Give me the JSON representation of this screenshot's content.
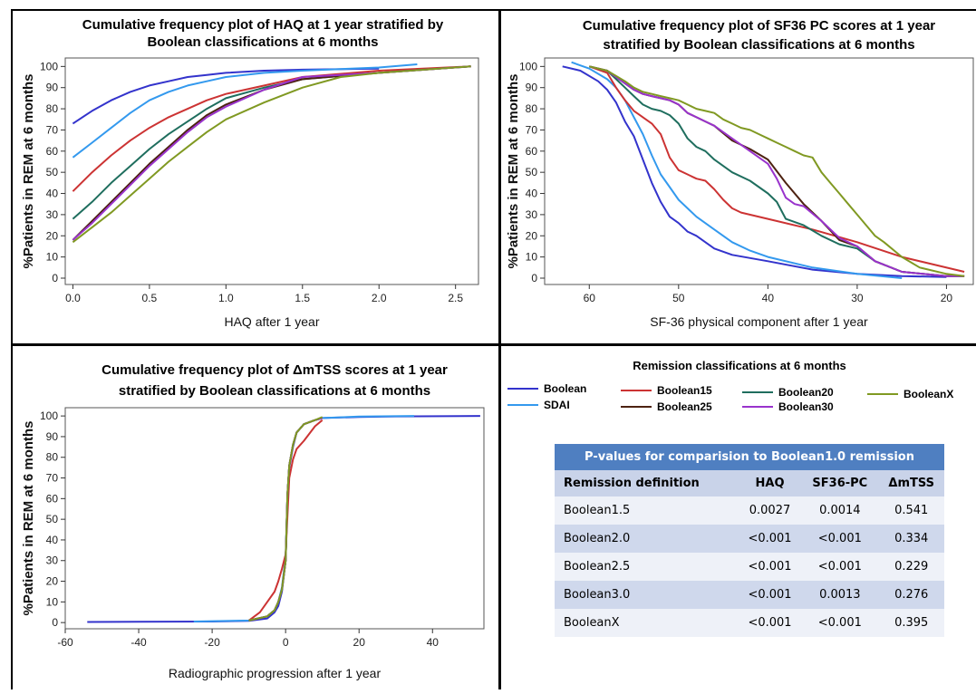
{
  "colors": {
    "Boolean": "#3333cc",
    "SDAI": "#3399ee",
    "Boolean15": "#cc3333",
    "Boolean25": "#4d2211",
    "Boolean20": "#1f6e5e",
    "Boolean30": "#9933cc",
    "BooleanX": "#809922",
    "table_header": "#4f7fc1"
  },
  "chart_data": [
    {
      "type": "line",
      "title_lines": [
        "Cumulative frequency plot of HAQ at 1 year stratified by",
        "Boolean classifications at 6 months"
      ],
      "xlabel": "HAQ after 1 year",
      "ylabel": "%Patients in REM at 6 months",
      "xlim": [
        -0.05,
        2.65
      ],
      "ylim": [
        -3,
        104
      ],
      "x_ticks": [
        "0.0",
        "0.5",
        "1.0",
        "1.5",
        "2.0",
        "2.5"
      ],
      "x_tick_values": [
        0,
        0.5,
        1.0,
        1.5,
        2.0,
        2.5
      ],
      "y_ticks": [
        "0",
        "10",
        "20",
        "30",
        "40",
        "50",
        "60",
        "70",
        "80",
        "90",
        "100"
      ],
      "y_tick_values": [
        0,
        10,
        20,
        30,
        40,
        50,
        60,
        70,
        80,
        90,
        100
      ],
      "series": [
        {
          "name": "Boolean",
          "x": [
            0,
            0.125,
            0.25,
            0.375,
            0.5,
            0.625,
            0.75,
            0.875,
            1.0,
            1.25,
            1.5,
            2.0
          ],
          "y": [
            73,
            79,
            84,
            88,
            91,
            93,
            95,
            96,
            97,
            98,
            98.5,
            99
          ]
        },
        {
          "name": "SDAI",
          "x": [
            0,
            0.125,
            0.25,
            0.375,
            0.5,
            0.625,
            0.75,
            0.875,
            1.0,
            1.25,
            1.5,
            2.0,
            2.25
          ],
          "y": [
            57,
            64,
            71,
            78,
            84,
            88,
            91,
            93,
            95,
            97,
            98,
            99.5,
            101
          ]
        },
        {
          "name": "Boolean15",
          "x": [
            0,
            0.125,
            0.25,
            0.375,
            0.5,
            0.625,
            0.75,
            0.875,
            1.0,
            1.25,
            1.5,
            2.0,
            2.6
          ],
          "y": [
            41,
            50,
            58,
            65,
            71,
            76,
            80,
            84,
            87,
            91,
            95,
            98,
            100
          ]
        },
        {
          "name": "Boolean20",
          "x": [
            0,
            0.125,
            0.25,
            0.375,
            0.5,
            0.625,
            0.75,
            0.875,
            1.0,
            1.25,
            1.5,
            2.0,
            2.6
          ],
          "y": [
            28,
            36,
            45,
            53,
            61,
            68,
            74,
            80,
            85,
            90,
            94,
            97,
            100
          ]
        },
        {
          "name": "Boolean25",
          "x": [
            0,
            0.125,
            0.25,
            0.375,
            0.5,
            0.625,
            0.75,
            0.875,
            1.0,
            1.25,
            1.5,
            2.0,
            2.6
          ],
          "y": [
            18,
            27,
            36,
            45,
            54,
            62,
            70,
            77,
            82,
            89,
            94,
            97,
            100
          ]
        },
        {
          "name": "Boolean30",
          "x": [
            0,
            0.125,
            0.25,
            0.375,
            0.5,
            0.625,
            0.75,
            0.875,
            1.0,
            1.25,
            1.5,
            2.0,
            2.6
          ],
          "y": [
            18,
            26,
            35,
            44,
            53,
            61,
            69,
            76,
            81,
            89,
            95,
            97,
            100
          ]
        },
        {
          "name": "BooleanX",
          "x": [
            0,
            0.125,
            0.25,
            0.375,
            0.5,
            0.625,
            0.75,
            0.875,
            1.0,
            1.25,
            1.5,
            1.75,
            2.0,
            2.6
          ],
          "y": [
            17,
            24,
            31,
            39,
            47,
            55,
            62,
            69,
            75,
            83,
            90,
            95,
            97,
            100
          ]
        }
      ]
    },
    {
      "type": "line",
      "title_lines": [
        "Cumulative frequency plot of SF36 PC scores at 1 year",
        "stratified by Boolean classifications at 6 months"
      ],
      "xlabel": "SF-36 physical component after 1 year",
      "ylabel": "%Patients in REM at 6 months",
      "xlim": [
        65,
        17
      ],
      "ylim": [
        -3,
        104
      ],
      "x_ticks": [
        "60",
        "50",
        "40",
        "30",
        "20"
      ],
      "x_tick_values": [
        60,
        50,
        40,
        30,
        20
      ],
      "y_ticks": [
        "0",
        "10",
        "20",
        "30",
        "40",
        "50",
        "60",
        "70",
        "80",
        "90",
        "100"
      ],
      "y_tick_values": [
        0,
        10,
        20,
        30,
        40,
        50,
        60,
        70,
        80,
        90,
        100
      ],
      "series": [
        {
          "name": "Boolean",
          "x": [
            63,
            61,
            59,
            58,
            57,
            56,
            55,
            54,
            53,
            52,
            51,
            50,
            49,
            48,
            46,
            44,
            40,
            35,
            30,
            25,
            20
          ],
          "y": [
            100,
            98,
            93,
            89,
            83,
            74,
            67,
            56,
            45,
            36,
            29,
            26,
            22,
            20,
            14,
            11,
            8,
            4,
            2,
            1,
            0.5
          ]
        },
        {
          "name": "SDAI",
          "x": [
            62,
            60,
            58,
            57,
            56,
            55,
            54,
            53,
            52,
            51,
            50,
            48,
            46,
            44,
            42,
            40,
            35,
            30,
            25
          ],
          "y": [
            102,
            99,
            94,
            90,
            84,
            76,
            68,
            58,
            49,
            43,
            37,
            29,
            23,
            17,
            13,
            10,
            5,
            2,
            0
          ]
        },
        {
          "name": "Boolean15",
          "x": [
            60,
            58,
            57,
            56,
            55,
            54,
            53,
            52,
            51,
            50,
            49,
            48,
            47,
            46,
            45,
            44,
            43,
            40,
            35,
            30,
            25,
            18
          ],
          "y": [
            100,
            97,
            90,
            84,
            79,
            76,
            73,
            68,
            57,
            51,
            49,
            47,
            46,
            42,
            37,
            33,
            31,
            28,
            23,
            17,
            10,
            3
          ]
        },
        {
          "name": "Boolean20",
          "x": [
            60,
            58,
            56,
            55,
            54,
            53,
            52,
            51,
            50,
            49,
            48,
            47,
            46,
            44,
            42,
            40,
            39,
            38,
            36,
            34,
            32,
            30,
            28,
            25,
            20,
            18
          ],
          "y": [
            100,
            98,
            90,
            86,
            82,
            80,
            79,
            77,
            73,
            66,
            62,
            60,
            56,
            50,
            46,
            40,
            36,
            28,
            25,
            20,
            16,
            14,
            8,
            3,
            1,
            1
          ]
        },
        {
          "name": "Boolean25",
          "x": [
            60,
            58,
            56,
            55,
            54,
            53,
            52,
            51,
            50,
            49,
            48,
            47,
            46,
            44,
            42,
            40,
            38,
            36,
            34,
            32,
            30,
            28,
            25,
            20,
            18
          ],
          "y": [
            100,
            98,
            92,
            89,
            87,
            86,
            85,
            84,
            82,
            78,
            76,
            74,
            72,
            65,
            61,
            56,
            45,
            35,
            27,
            18,
            15,
            8,
            3,
            1,
            1
          ]
        },
        {
          "name": "Boolean30",
          "x": [
            60,
            58,
            56,
            55,
            54,
            53,
            52,
            51,
            50,
            49,
            48,
            47,
            46,
            44,
            42,
            40,
            39,
            38,
            37,
            36,
            34,
            32,
            30,
            28,
            25,
            20,
            18
          ],
          "y": [
            100,
            98,
            92,
            89,
            87,
            86,
            85,
            84,
            82,
            78,
            76,
            74,
            72,
            66,
            60,
            54,
            47,
            38,
            35,
            34,
            27,
            19,
            15,
            8,
            3,
            1,
            1
          ]
        },
        {
          "name": "BooleanX",
          "x": [
            60,
            58,
            56,
            55,
            54,
            53,
            52,
            51,
            50,
            49,
            48,
            47,
            46,
            45,
            44,
            43,
            42,
            41,
            40,
            39,
            38,
            37,
            36,
            35,
            34,
            33,
            32,
            31,
            30,
            29,
            28,
            27,
            25,
            23,
            20,
            18
          ],
          "y": [
            100,
            98,
            93,
            90,
            88,
            87,
            86,
            85,
            84,
            82,
            80,
            79,
            78,
            75,
            73,
            71,
            70,
            68,
            66,
            64,
            62,
            60,
            58,
            57,
            50,
            45,
            40,
            35,
            30,
            25,
            20,
            17,
            10,
            5,
            2,
            1
          ]
        }
      ]
    },
    {
      "type": "line",
      "title_lines": [
        "Cumulative frequency plot of ΔmTSS scores at 1 year",
        "stratified by Boolean classifications at 6 months"
      ],
      "xlabel": "Radiographic progression after 1 year",
      "ylabel": "%Patients in REM at 6 months",
      "xlim": [
        -60,
        54
      ],
      "ylim": [
        -3,
        104
      ],
      "x_ticks": [
        "-60",
        "-40",
        "-20",
        "0",
        "20",
        "40"
      ],
      "x_tick_values": [
        -60,
        -40,
        -20,
        0,
        20,
        40
      ],
      "y_ticks": [
        "0",
        "10",
        "20",
        "30",
        "40",
        "50",
        "60",
        "70",
        "80",
        "90",
        "100"
      ],
      "y_tick_values": [
        0,
        10,
        20,
        30,
        40,
        50,
        60,
        70,
        80,
        90,
        100
      ],
      "series": [
        {
          "name": "Boolean",
          "x": [
            -54,
            -40,
            -20,
            -10,
            -5,
            -3,
            -2,
            -1,
            0,
            0.5,
            1,
            2,
            3,
            5,
            8,
            10,
            20,
            30,
            53
          ],
          "y": [
            0.3,
            0.4,
            0.5,
            0.8,
            2,
            5,
            8,
            15,
            30,
            60,
            75,
            85,
            92,
            96,
            98,
            99,
            99.5,
            99.8,
            100
          ]
        },
        {
          "name": "SDAI",
          "x": [
            -25,
            -10,
            -5,
            -3,
            -2,
            -1,
            0,
            0.5,
            1,
            2,
            3,
            5,
            8,
            10,
            20,
            35
          ],
          "y": [
            0.5,
            1,
            3,
            6,
            10,
            17,
            32,
            62,
            76,
            86,
            92,
            96,
            98,
            99,
            99.7,
            100
          ]
        },
        {
          "name": "Boolean15",
          "x": [
            -10,
            -7,
            -5,
            -3,
            -2,
            -1,
            0,
            1,
            2,
            3,
            5,
            8,
            10
          ],
          "y": [
            1,
            5,
            10,
            15,
            20,
            26,
            33,
            70,
            79,
            84,
            88,
            95,
            98
          ]
        },
        {
          "name": "Boolean20",
          "x": [
            -10,
            -5,
            -3,
            -2,
            -1,
            0,
            0.5,
            1,
            2,
            3,
            5,
            8,
            10
          ],
          "y": [
            1,
            3,
            6,
            10,
            16,
            30,
            62,
            76,
            86,
            92,
            96,
            98,
            99
          ]
        },
        {
          "name": "Boolean25",
          "x": [
            -10,
            -5,
            -3,
            -2,
            -1,
            0,
            0.5,
            1,
            2,
            3,
            5,
            8,
            10
          ],
          "y": [
            1,
            3,
            6,
            10,
            16,
            30,
            62,
            76,
            86,
            92,
            96,
            98,
            99
          ]
        },
        {
          "name": "Boolean30",
          "x": [
            -10,
            -5,
            -3,
            -2,
            -1,
            0,
            0.5,
            1,
            2,
            3,
            5,
            8,
            10
          ],
          "y": [
            1,
            3,
            6,
            10,
            16,
            30,
            62,
            76,
            86,
            92,
            96,
            98,
            99
          ]
        },
        {
          "name": "BooleanX",
          "x": [
            -10,
            -5,
            -3,
            -2,
            -1,
            0,
            0.5,
            1,
            2,
            3,
            5,
            8,
            10
          ],
          "y": [
            1,
            3,
            6,
            10,
            16,
            30,
            62,
            76,
            86,
            92,
            96,
            98,
            99.5
          ]
        }
      ]
    }
  ],
  "legend": {
    "title": "Remission classifications at 6 months",
    "items": [
      {
        "name": "Boolean"
      },
      {
        "name": "SDAI"
      },
      {
        "name": "Boolean15"
      },
      {
        "name": "Boolean25"
      },
      {
        "name": "Boolean20"
      },
      {
        "name": "Boolean30"
      },
      {
        "name": "BooleanX"
      }
    ]
  },
  "pvalue_table": {
    "caption": "P-values for comparision to Boolean1.0 remission",
    "headers": [
      "Remission definition",
      "HAQ",
      "SF36-PC",
      "ΔmTSS"
    ],
    "rows": [
      [
        "Boolean1.5",
        "0.0027",
        "0.0014",
        "0.541"
      ],
      [
        "Boolean2.0",
        "<0.001",
        "<0.001",
        "0.334"
      ],
      [
        "Boolean2.5",
        "<0.001",
        "<0.001",
        "0.229"
      ],
      [
        "Boolean3.0",
        "<0.001",
        "0.0013",
        "0.276"
      ],
      [
        "BooleanX",
        "<0.001",
        "<0.001",
        "0.395"
      ]
    ]
  }
}
